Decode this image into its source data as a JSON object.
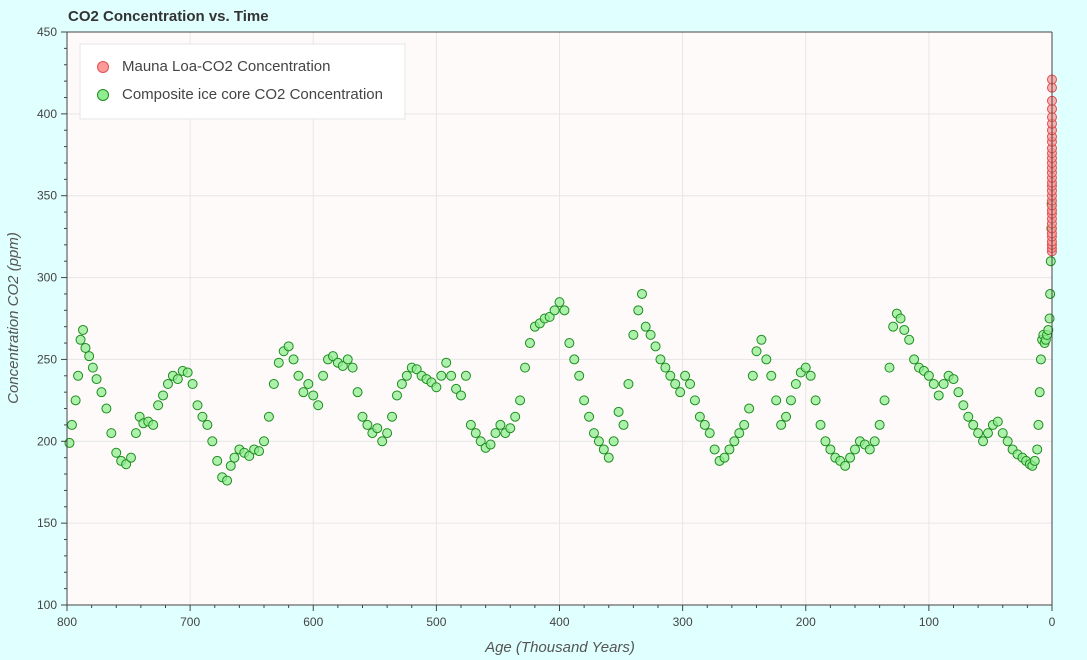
{
  "page": {
    "background": "#e0ffff",
    "plot_background": "#fffafa"
  },
  "chart_data": {
    "type": "scatter",
    "title": "CO2 Concentration vs. Time",
    "xlabel": "Age (Thousand Years)",
    "ylabel": "Concentration CO2 (ppm)",
    "xlim": [
      800,
      0
    ],
    "ylim": [
      100,
      450
    ],
    "x_ticks": [
      "800",
      "700",
      "600",
      "500",
      "400",
      "300",
      "200",
      "100",
      "0"
    ],
    "y_ticks": [
      "100",
      "150",
      "200",
      "250",
      "300",
      "350",
      "400",
      "450"
    ],
    "grid": true,
    "legend_position": "top-left",
    "series": [
      {
        "name": "Mauna Loa-CO2 Concentration",
        "fill": "#ff9a9a",
        "stroke": "#e05050",
        "x": [
          0.065,
          0.063,
          0.061,
          0.059,
          0.057,
          0.055,
          0.053,
          0.051,
          0.049,
          0.047,
          0.045,
          0.043,
          0.041,
          0.039,
          0.037,
          0.035,
          0.033,
          0.031,
          0.029,
          0.027,
          0.025,
          0.023,
          0.021,
          0.019,
          0.017,
          0.015,
          0.013,
          0.011,
          0.009,
          0.007,
          0.005,
          0.003,
          0.001
        ],
        "y": [
          316,
          318,
          320,
          322,
          325,
          327,
          330,
          333,
          336,
          339,
          341,
          344,
          347,
          350,
          353,
          356,
          358,
          361,
          364,
          367,
          370,
          373,
          376,
          379,
          383,
          386,
          390,
          394,
          398,
          403,
          408,
          416,
          421
        ]
      },
      {
        "name": "Composite ice core CO2 Concentration",
        "fill": "#90ee90",
        "stroke": "#1e8c1e",
        "x": [
          798,
          796,
          793,
          791,
          789,
          787,
          785,
          782,
          779,
          776,
          772,
          768,
          764,
          760,
          756,
          752,
          748,
          744,
          741,
          738,
          734,
          730,
          726,
          722,
          718,
          714,
          710,
          706,
          702,
          698,
          694,
          690,
          686,
          682,
          678,
          674,
          670,
          667,
          664,
          660,
          656,
          652,
          648,
          644,
          640,
          636,
          632,
          628,
          624,
          620,
          616,
          612,
          608,
          604,
          600,
          596,
          592,
          588,
          584,
          580,
          576,
          572,
          568,
          564,
          560,
          556,
          552,
          548,
          544,
          540,
          536,
          532,
          528,
          524,
          520,
          516,
          512,
          508,
          504,
          500,
          496,
          492,
          488,
          484,
          480,
          476,
          472,
          468,
          464,
          460,
          456,
          452,
          448,
          444,
          440,
          436,
          432,
          428,
          424,
          420,
          416,
          412,
          408,
          404,
          400,
          396,
          392,
          388,
          384,
          380,
          376,
          372,
          368,
          364,
          360,
          356,
          352,
          348,
          344,
          340,
          336,
          333,
          330,
          326,
          322,
          318,
          314,
          310,
          306,
          302,
          298,
          294,
          290,
          286,
          282,
          278,
          274,
          270,
          266,
          262,
          258,
          254,
          250,
          246,
          243,
          240,
          236,
          232,
          228,
          224,
          220,
          216,
          212,
          208,
          204,
          200,
          196,
          192,
          188,
          184,
          180,
          176,
          172,
          168,
          164,
          160,
          156,
          152,
          148,
          144,
          140,
          136,
          132,
          129,
          126,
          123,
          120,
          116,
          112,
          108,
          104,
          100,
          96,
          92,
          88,
          84,
          80,
          76,
          72,
          68,
          64,
          60,
          56,
          52,
          48,
          44,
          40,
          36,
          32,
          28,
          24,
          21,
          18,
          16,
          14,
          12,
          11,
          10,
          9,
          8,
          7,
          6,
          5,
          4,
          3,
          2,
          1.5,
          1,
          0.5,
          0.3
        ],
        "y": [
          199,
          210,
          225,
          240,
          262,
          268,
          257,
          252,
          245,
          238,
          230,
          220,
          205,
          193,
          188,
          186,
          190,
          205,
          215,
          211,
          212,
          210,
          222,
          228,
          235,
          240,
          238,
          243,
          242,
          235,
          222,
          215,
          210,
          200,
          188,
          178,
          176,
          185,
          190,
          195,
          193,
          191,
          195,
          194,
          200,
          215,
          235,
          248,
          255,
          258,
          250,
          240,
          230,
          235,
          228,
          222,
          240,
          250,
          252,
          248,
          246,
          250,
          245,
          230,
          215,
          210,
          205,
          208,
          200,
          205,
          215,
          228,
          235,
          240,
          245,
          244,
          240,
          238,
          236,
          233,
          240,
          248,
          240,
          232,
          228,
          240,
          210,
          205,
          200,
          196,
          198,
          205,
          210,
          205,
          208,
          215,
          225,
          245,
          260,
          270,
          272,
          275,
          276,
          280,
          285,
          280,
          260,
          250,
          240,
          225,
          215,
          205,
          200,
          195,
          190,
          200,
          218,
          210,
          235,
          265,
          280,
          290,
          270,
          265,
          258,
          250,
          245,
          240,
          235,
          230,
          240,
          235,
          225,
          215,
          210,
          205,
          195,
          188,
          190,
          195,
          200,
          205,
          210,
          220,
          240,
          255,
          262,
          250,
          240,
          225,
          210,
          215,
          225,
          235,
          242,
          245,
          240,
          225,
          210,
          200,
          195,
          190,
          188,
          185,
          190,
          195,
          200,
          198,
          195,
          200,
          210,
          225,
          245,
          270,
          278,
          275,
          268,
          262,
          250,
          245,
          243,
          240,
          235,
          228,
          235,
          240,
          238,
          230,
          222,
          215,
          210,
          205,
          200,
          205,
          210,
          212,
          205,
          200,
          195,
          192,
          190,
          188,
          186,
          185,
          188,
          195,
          210,
          230,
          250,
          262,
          265,
          260,
          262,
          265,
          268,
          275,
          290,
          310,
          330,
          345
        ]
      }
    ]
  }
}
